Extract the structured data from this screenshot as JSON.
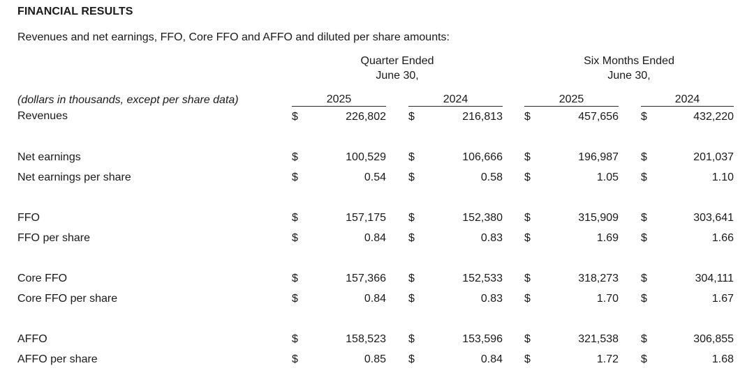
{
  "page": {
    "title": "FINANCIAL RESULTS",
    "subtitle": "Revenues and net earnings, FFO, Core FFO and AFFO and diluted per share amounts:"
  },
  "table": {
    "group_headers": [
      {
        "line1": "Quarter Ended",
        "line2": "June 30,"
      },
      {
        "line1": "Six Months Ended",
        "line2": "June 30,"
      }
    ],
    "row_label_header": "(dollars in thousands, except per share data)",
    "year_headers": [
      "2025",
      "2024",
      "2025",
      "2024"
    ],
    "currency_symbol": "$",
    "rows": [
      {
        "label": "Revenues",
        "values": [
          "226,802",
          "216,813",
          "457,656",
          "432,220"
        ],
        "spacer_after": true
      },
      {
        "label": "Net earnings",
        "values": [
          "100,529",
          "106,666",
          "196,987",
          "201,037"
        ],
        "spacer_after": false
      },
      {
        "label": "Net earnings per share",
        "values": [
          "0.54",
          "0.58",
          "1.05",
          "1.10"
        ],
        "spacer_after": true
      },
      {
        "label": "FFO",
        "values": [
          "157,175",
          "152,380",
          "315,909",
          "303,641"
        ],
        "spacer_after": false
      },
      {
        "label": "FFO per share",
        "values": [
          "0.84",
          "0.83",
          "1.69",
          "1.66"
        ],
        "spacer_after": true
      },
      {
        "label": "Core FFO",
        "values": [
          "157,366",
          "152,533",
          "318,273",
          "304,111"
        ],
        "spacer_after": false
      },
      {
        "label": "Core FFO per share",
        "values": [
          "0.84",
          "0.83",
          "1.70",
          "1.67"
        ],
        "spacer_after": true
      },
      {
        "label": "AFFO",
        "values": [
          "158,523",
          "153,596",
          "321,538",
          "306,855"
        ],
        "spacer_after": false
      },
      {
        "label": "AFFO per share",
        "values": [
          "0.85",
          "0.84",
          "1.72",
          "1.68"
        ],
        "spacer_after": false
      }
    ],
    "colors": {
      "text": "#1a1a1a",
      "rule": "#2b2b2b",
      "background": "#ffffff"
    }
  }
}
